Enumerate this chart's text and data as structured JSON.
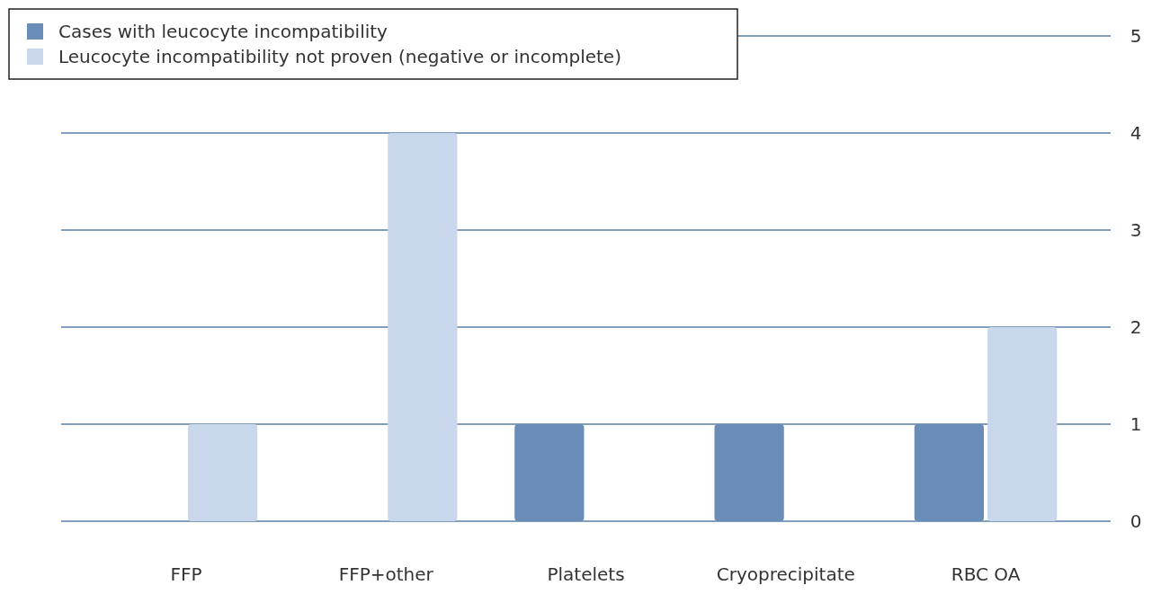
{
  "chart_data": {
    "type": "bar",
    "categories": [
      "FFP",
      "FFP+other",
      "Platelets",
      "Cryoprecipitate",
      "RBC OA"
    ],
    "series": [
      {
        "name": "Cases with leucocyte incompatibility",
        "color": "#6a8db8",
        "values": [
          null,
          null,
          1,
          1,
          1
        ]
      },
      {
        "name": "Leucocyte incompatibility not proven (negative or incomplete)",
        "color": "#c9d7ec",
        "values": [
          1,
          4,
          null,
          null,
          2
        ]
      }
    ],
    "ylim": [
      0,
      5
    ],
    "yticks": [
      0,
      1,
      2,
      3,
      4,
      5
    ],
    "grid": "y",
    "legend": "top left"
  }
}
